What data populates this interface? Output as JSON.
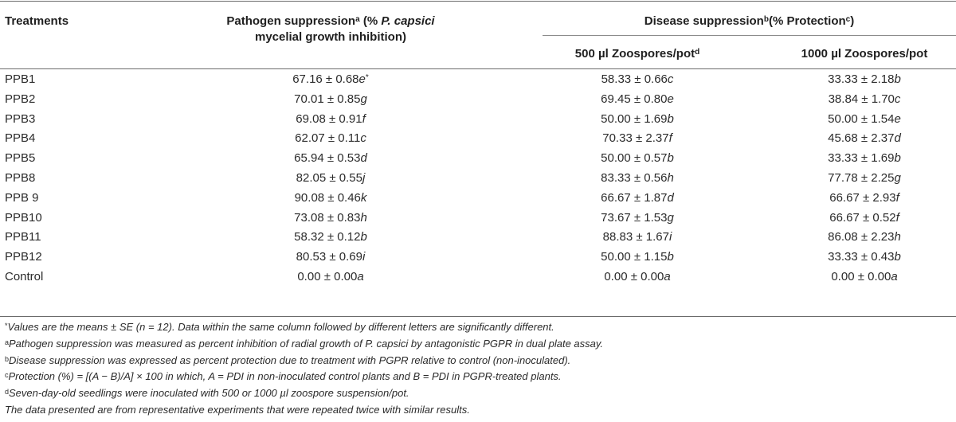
{
  "header": {
    "treatments": "Treatments",
    "pathogen_pre": "Pathogen suppression",
    "pathogen_sup": "a",
    "pathogen_mid": " (% ",
    "pathogen_italic": "P. capsici",
    "pathogen_line2": "mycelial growth inhibition)",
    "disease_pre": "Disease suppression",
    "disease_sup": "b",
    "disease_mid": "(% Protection",
    "disease_sup2": "c",
    "disease_post": ")",
    "col500": "500 µl Zoospores/pot",
    "col500_sup": "d",
    "col1000": "1000 µl Zoospores/pot"
  },
  "rows": [
    {
      "t": "PPB1",
      "p": "67.16 ± 0.68",
      "pl": "e",
      "pmark": "*",
      "d5": "58.33 ± 0.66",
      "d5l": "c",
      "d10": "33.33 ± 2.18",
      "d10l": "b"
    },
    {
      "t": "PPB2",
      "p": "70.01 ± 0.85",
      "pl": "g",
      "pmark": "",
      "d5": "69.45 ± 0.80",
      "d5l": "e",
      "d10": "38.84 ± 1.70",
      "d10l": "c"
    },
    {
      "t": "PPB3",
      "p": "69.08 ± 0.91",
      "pl": "f",
      "pmark": "",
      "d5": "50.00 ± 1.69",
      "d5l": "b",
      "d10": "50.00 ± 1.54",
      "d10l": "e"
    },
    {
      "t": "PPB4",
      "p": "62.07 ± 0.11",
      "pl": "c",
      "pmark": "",
      "d5": "70.33 ± 2.37",
      "d5l": "f",
      "d10": "45.68 ± 2.37",
      "d10l": "d"
    },
    {
      "t": "PPB5",
      "p": "65.94 ± 0.53",
      "pl": "d",
      "pmark": "",
      "d5": "50.00 ± 0.57",
      "d5l": "b",
      "d10": "33.33 ± 1.69",
      "d10l": "b"
    },
    {
      "t": "PPB8",
      "p": "82.05 ± 0.55",
      "pl": "j",
      "pmark": "",
      "d5": "83.33 ± 0.56",
      "d5l": "h",
      "d10": "77.78 ± 2.25",
      "d10l": "g"
    },
    {
      "t": "PPB 9",
      "p": "90.08 ± 0.46",
      "pl": "k",
      "pmark": "",
      "d5": "66.67 ± 1.87",
      "d5l": "d",
      "d10": "66.67 ± 2.93",
      "d10l": "f"
    },
    {
      "t": "PPB10",
      "p": "73.08 ± 0.83",
      "pl": "h",
      "pmark": "",
      "d5": "73.67 ± 1.53",
      "d5l": "g",
      "d10": "66.67 ± 0.52",
      "d10l": "f"
    },
    {
      "t": "PPB11",
      "p": "58.32 ± 0.12",
      "pl": "b",
      "pmark": "",
      "d5": "88.83 ± 1.67",
      "d5l": "i",
      "d10": "86.08 ± 2.23",
      "d10l": "h"
    },
    {
      "t": "PPB12",
      "p": "80.53 ± 0.69",
      "pl": "i",
      "pmark": "",
      "d5": "50.00 ± 1.15",
      "d5l": "b",
      "d10": "33.33 ± 0.43",
      "d10l": "b"
    },
    {
      "t": "Control",
      "p": "0.00 ± 0.00",
      "pl": "a",
      "pmark": "",
      "d5": "0.00 ± 0.00",
      "d5l": "a",
      "d10": "0.00 ± 0.00",
      "d10l": "a"
    }
  ],
  "notes": [
    {
      "mark": "*",
      "text": "Values are the means ± SE (n = 12). Data within the same column followed by different letters are significantly different."
    },
    {
      "mark": "a",
      "text": "Pathogen suppression was measured as percent inhibition of radial growth of P. capsici by antagonistic PGPR in dual plate assay."
    },
    {
      "mark": "b",
      "text": "Disease suppression was expressed as percent protection due to treatment with PGPR relative to control (non-inoculated)."
    },
    {
      "mark": "c",
      "text": "Protection (%) = [(A − B)/A] × 100 in which, A = PDI in non-inoculated control plants and B = PDI in PGPR-treated plants."
    },
    {
      "mark": "d",
      "text": "Seven-day-old seedlings were inoculated with 500 or 1000 µl zoospore suspension/pot."
    },
    {
      "mark": "",
      "text": "The data presented are from representative experiments that were repeated twice with similar results."
    }
  ]
}
